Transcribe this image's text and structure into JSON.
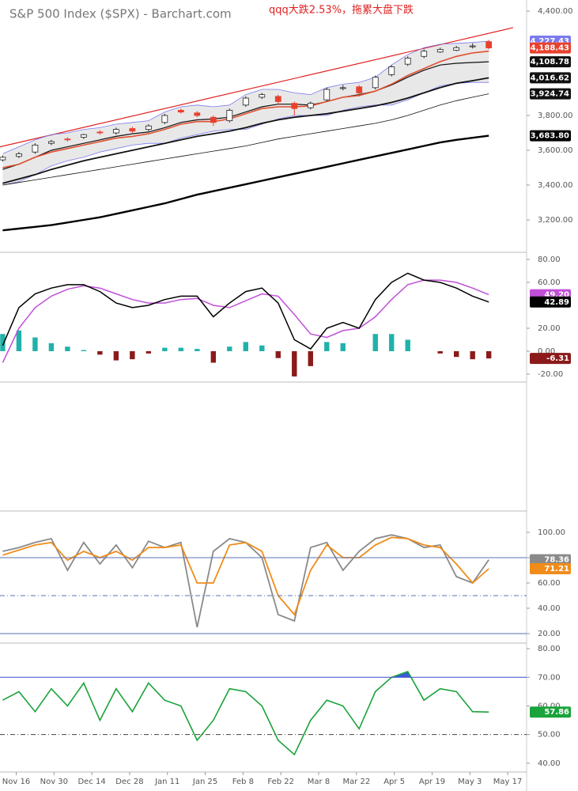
{
  "chart_data": [
    {
      "type": "candlestick",
      "title": "S&P 500 Index ($SPX) - Barchart.com",
      "annotation": "qqq大跌2.53%，拖累大盘下跌",
      "x": [
        -5,
        1,
        7,
        13,
        19,
        25,
        31,
        37,
        43,
        49,
        55,
        61,
        67,
        73,
        79,
        85,
        91,
        97,
        103,
        109,
        115,
        121,
        127,
        133,
        139,
        145,
        151,
        157,
        163,
        169,
        175
      ],
      "xlim": [
        -6,
        189
      ],
      "ylim": [
        3018,
        4464
      ],
      "yticks": [
        {
          "value": 4400,
          "label": "4,400.00"
        },
        {
          "value": 3800,
          "label": "3,800.00"
        },
        {
          "value": 3600,
          "label": "3,600.00"
        },
        {
          "value": 3400,
          "label": "3,400.00"
        },
        {
          "value": 3200,
          "label": "3,200.00"
        }
      ],
      "open": [
        3545,
        3565,
        3590,
        3640,
        3665,
        3675,
        3705,
        3700,
        3725,
        3720,
        3760,
        3830,
        3815,
        3790,
        3770,
        3860,
        3905,
        3910,
        3870,
        3845,
        3890,
        3955,
        3965,
        3960,
        4035,
        4095,
        4140,
        4165,
        4175,
        4195,
        4225
      ],
      "high": [
        3570,
        3590,
        3640,
        3660,
        3675,
        3695,
        3715,
        3730,
        3735,
        3750,
        3810,
        3840,
        3825,
        3800,
        3840,
        3910,
        3930,
        3920,
        3880,
        3880,
        3960,
        3975,
        3975,
        4030,
        4090,
        4140,
        4180,
        4190,
        4200,
        4215,
        4235
      ],
      "low": [
        3535,
        3555,
        3580,
        3630,
        3650,
        3665,
        3690,
        3690,
        3700,
        3710,
        3750,
        3810,
        3790,
        3740,
        3760,
        3850,
        3895,
        3860,
        3800,
        3835,
        3880,
        3945,
        3910,
        3950,
        4025,
        4085,
        4130,
        4160,
        4170,
        4185,
        4180
      ],
      "close": [
        3560,
        3580,
        3630,
        3650,
        3660,
        3690,
        3700,
        3720,
        3710,
        3740,
        3800,
        3820,
        3800,
        3760,
        3830,
        3900,
        3920,
        3880,
        3840,
        3870,
        3950,
        3960,
        3930,
        4020,
        4080,
        4130,
        4170,
        4180,
        4190,
        4200,
        4188.43
      ],
      "close_label": "4,188.43",
      "up_color": "#ffffff",
      "down_color": "#e8412e",
      "close_label_color": "#e8412e",
      "band_fill": "#e8e8e8",
      "trendline": {
        "x": [
          -6,
          184
        ],
        "values": [
          3620,
          4305
        ],
        "color": "#e02020"
      },
      "series": [
        {
          "color": "#7b7bef",
          "width": 0.8,
          "values": [
            3580,
            3620,
            3660,
            3690,
            3700,
            3720,
            3730,
            3750,
            3760,
            3770,
            3820,
            3850,
            3860,
            3850,
            3860,
            3920,
            3950,
            3950,
            3930,
            3920,
            3960,
            3980,
            3990,
            4020,
            4090,
            4150,
            4190,
            4210,
            4215,
            4220,
            4227.43
          ],
          "end_label": "4,227.43"
        },
        {
          "color": "#7b7bef",
          "width": 0.8,
          "values": [
            3400,
            3420,
            3460,
            3510,
            3540,
            3560,
            3590,
            3610,
            3630,
            3640,
            3640,
            3670,
            3690,
            3710,
            3720,
            3720,
            3750,
            3780,
            3800,
            3800,
            3800,
            3830,
            3850,
            3860,
            3860,
            3890,
            3930,
            3970,
            3985,
            3990,
            3990
          ]
        },
        {
          "color": "#111111",
          "width": 1.2,
          "values": [
            3490,
            3520,
            3560,
            3600,
            3620,
            3640,
            3660,
            3680,
            3695,
            3705,
            3730,
            3760,
            3775,
            3780,
            3790,
            3820,
            3850,
            3865,
            3865,
            3860,
            3880,
            3905,
            3920,
            3940,
            3975,
            4020,
            4060,
            4090,
            4100,
            4105,
            4108.78
          ],
          "end_label": "4,108.78"
        },
        {
          "color": "#e05030",
          "width": 1.6,
          "values": [
            3500,
            3520,
            3560,
            3590,
            3610,
            3630,
            3650,
            3670,
            3680,
            3695,
            3720,
            3750,
            3765,
            3765,
            3780,
            3810,
            3840,
            3850,
            3850,
            3855,
            3880,
            3905,
            3915,
            3940,
            3980,
            4030,
            4070,
            4110,
            4140,
            4160,
            4170
          ]
        },
        {
          "color": "#111111",
          "width": 1.8,
          "values": [
            3410,
            3435,
            3460,
            3490,
            3515,
            3540,
            3560,
            3580,
            3600,
            3620,
            3640,
            3660,
            3680,
            3695,
            3710,
            3730,
            3755,
            3775,
            3790,
            3800,
            3810,
            3825,
            3840,
            3855,
            3875,
            3900,
            3930,
            3960,
            3985,
            4000,
            4016.62
          ],
          "end_label": "4,016.62"
        },
        {
          "color": "#111111",
          "width": 0.8,
          "values": [
            3400,
            3415,
            3430,
            3445,
            3460,
            3475,
            3490,
            3505,
            3520,
            3535,
            3550,
            3565,
            3580,
            3595,
            3610,
            3625,
            3645,
            3665,
            3680,
            3695,
            3710,
            3725,
            3740,
            3755,
            3775,
            3800,
            3830,
            3860,
            3885,
            3905,
            3924.74
          ],
          "end_label": "3,924.74"
        },
        {
          "color": "#000000",
          "width": 2.4,
          "values": [
            3140,
            3150,
            3160,
            3170,
            3185,
            3200,
            3215,
            3235,
            3255,
            3275,
            3295,
            3320,
            3345,
            3365,
            3385,
            3405,
            3425,
            3445,
            3465,
            3485,
            3505,
            3525,
            3545,
            3565,
            3585,
            3605,
            3625,
            3645,
            3660,
            3672,
            3683.8
          ],
          "end_label": "3,683.80"
        }
      ]
    },
    {
      "type": "line",
      "x": [
        -5,
        1,
        7,
        13,
        19,
        25,
        31,
        37,
        43,
        49,
        55,
        61,
        67,
        73,
        79,
        85,
        91,
        97,
        103,
        109,
        115,
        121,
        127,
        133,
        139,
        145,
        151,
        157,
        163,
        169,
        175
      ],
      "xlim": [
        -6,
        189
      ],
      "ylim": [
        -26.2,
        85.5
      ],
      "yticks": [
        {
          "value": 80,
          "label": "80.00"
        },
        {
          "value": 60,
          "label": "60.00"
        },
        {
          "value": 20,
          "label": "20.00"
        },
        {
          "value": 0,
          "label": "0.00"
        },
        {
          "value": -20,
          "label": "-20.00"
        }
      ],
      "series": [
        {
          "type": "bar",
          "color": "#20b2aa",
          "neg_color": "#8b1a1a",
          "values": [
            15,
            18,
            12,
            7,
            4,
            1,
            -3,
            -8,
            -7,
            -2,
            3,
            3,
            2,
            -10,
            4,
            8,
            5,
            -6,
            -22,
            -13,
            8,
            7,
            0,
            15,
            15,
            10,
            0,
            -2,
            -5,
            -7,
            -6.31
          ],
          "end_label": "-6.31"
        },
        {
          "type": "line",
          "color": "#c050d8",
          "width": 1.5,
          "values": [
            -10,
            20,
            38,
            48,
            54,
            57,
            55,
            50,
            45,
            42,
            42,
            45,
            46,
            40,
            38,
            44,
            50,
            48,
            32,
            15,
            12,
            18,
            20,
            30,
            45,
            58,
            62,
            62,
            60,
            55,
            49.2
          ],
          "end_label": "49.20"
        },
        {
          "type": "line",
          "color": "#000000",
          "width": 1.5,
          "values": [
            5,
            38,
            50,
            55,
            58,
            58,
            52,
            42,
            38,
            40,
            45,
            48,
            48,
            30,
            42,
            52,
            55,
            42,
            10,
            2,
            20,
            25,
            20,
            45,
            60,
            68,
            62,
            60,
            55,
            48,
            42.89
          ],
          "end_label": "42.89"
        }
      ]
    },
    {
      "type": "line",
      "x": [
        -5,
        1,
        7,
        13,
        19,
        25,
        31,
        37,
        43,
        49,
        55,
        61,
        67,
        73,
        79,
        85,
        91,
        97,
        103,
        109,
        115,
        121,
        127,
        133,
        139,
        145,
        151,
        157,
        163,
        169,
        175
      ],
      "xlim": [
        -6,
        189
      ],
      "ylim": [
        13.1,
        115.6
      ],
      "yticks": [
        {
          "value": 100,
          "label": "100.00"
        },
        {
          "value": 80,
          "label": "80.00"
        },
        {
          "value": 60,
          "label": "60.00"
        },
        {
          "value": 40,
          "label": "40.00"
        },
        {
          "value": 20,
          "label": "20.00"
        }
      ],
      "hlines": [
        {
          "value": 80,
          "color": "#5a6fb0",
          "dash": "none"
        },
        {
          "value": 50,
          "color": "#5a6fb0",
          "dash": "6 3 1 3"
        },
        {
          "value": 20,
          "color": "#5a6fb0",
          "dash": "none"
        }
      ],
      "series": [
        {
          "type": "line",
          "color": "#8a8a8a",
          "width": 1.8,
          "values": [
            85,
            88,
            92,
            95,
            70,
            92,
            75,
            90,
            72,
            93,
            88,
            92,
            25,
            85,
            95,
            92,
            80,
            35,
            30,
            88,
            92,
            70,
            85,
            95,
            98,
            95,
            88,
            90,
            65,
            60,
            78.36
          ],
          "end_label": "78.36"
        },
        {
          "type": "line",
          "color": "#f08c1a",
          "width": 1.8,
          "values": [
            82,
            86,
            90,
            92,
            78,
            85,
            80,
            85,
            78,
            88,
            88,
            90,
            60,
            60,
            90,
            92,
            85,
            50,
            35,
            70,
            90,
            80,
            80,
            90,
            96,
            95,
            90,
            88,
            75,
            60,
            71.21
          ],
          "end_label": "71.21"
        }
      ]
    },
    {
      "type": "line",
      "x": [
        -5,
        1,
        7,
        13,
        19,
        25,
        31,
        37,
        43,
        49,
        55,
        61,
        67,
        73,
        79,
        85,
        91,
        97,
        103,
        109,
        115,
        121,
        127,
        133,
        139,
        145,
        151,
        157,
        163,
        169,
        175
      ],
      "xlim": [
        -6,
        189
      ],
      "ylim": [
        37.2,
        81.4
      ],
      "yticks": [
        {
          "value": 80,
          "label": "80.00"
        },
        {
          "value": 70,
          "label": "70.00"
        },
        {
          "value": 60,
          "label": "60.00"
        },
        {
          "value": 50,
          "label": "50.00"
        },
        {
          "value": 40,
          "label": "40.00"
        }
      ],
      "xticks": [
        {
          "value": 0,
          "label": "Nov 16"
        },
        {
          "value": 14,
          "label": "Nov 30"
        },
        {
          "value": 28,
          "label": "Dec 14"
        },
        {
          "value": 42,
          "label": "Dec 28"
        },
        {
          "value": 56,
          "label": "Jan 11"
        },
        {
          "value": 70,
          "label": "Jan 25"
        },
        {
          "value": 84,
          "label": "Feb 8"
        },
        {
          "value": 98,
          "label": "Feb 22"
        },
        {
          "value": 112,
          "label": "Mar 8"
        },
        {
          "value": 126,
          "label": "Mar 22"
        },
        {
          "value": 140,
          "label": "Apr 5"
        },
        {
          "value": 154,
          "label": "Apr 19"
        },
        {
          "value": 168,
          "label": "May 3"
        },
        {
          "value": 182,
          "label": "May 17"
        }
      ],
      "hlines": [
        {
          "value": 70,
          "color": "#3a4fc8",
          "dash": "none"
        },
        {
          "value": 50,
          "color": "#444444",
          "dash": "6 3 1 3"
        }
      ],
      "fill_above": {
        "value": 70,
        "color": "#3b5bdb"
      },
      "series": [
        {
          "type": "line",
          "color": "#1aa33a",
          "width": 1.6,
          "values": [
            62,
            65,
            58,
            66,
            60,
            68,
            55,
            66,
            58,
            68,
            62,
            60,
            48,
            55,
            66,
            65,
            60,
            48,
            43,
            55,
            62,
            60,
            52,
            65,
            70,
            72,
            62,
            66,
            65,
            58,
            57.86
          ],
          "end_label": "57.86"
        }
      ]
    }
  ]
}
